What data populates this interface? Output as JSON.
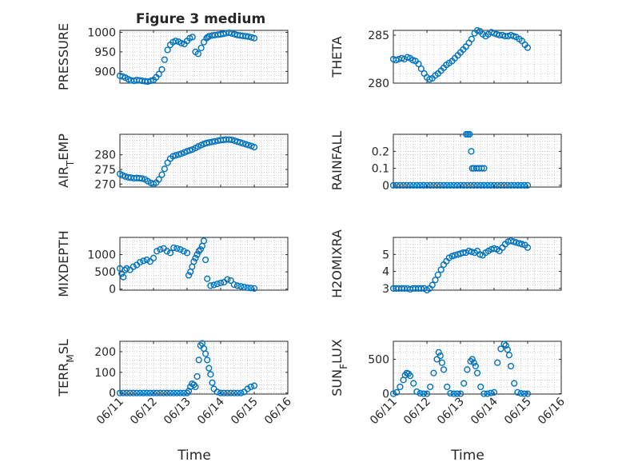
{
  "figure": {
    "title": "Figure 3 medium",
    "x_tick_labels": [
      "06/11",
      "06/12",
      "06/13",
      "06/14",
      "06/15",
      "06/16"
    ],
    "x_label": "Time"
  },
  "colors": {
    "marker": "#0072BD",
    "axes": "#262626",
    "grid": "#b0b0b0",
    "background": "#ffffff"
  },
  "chart_data": [
    {
      "type": "scatter",
      "ylabel": "PRESSURE",
      "xlim": [
        0,
        5
      ],
      "ylim": [
        870,
        1005
      ],
      "yticks": [
        900,
        950,
        1000
      ],
      "x": [
        0.0,
        0.08,
        0.16,
        0.25,
        0.33,
        0.42,
        0.5,
        0.58,
        0.66,
        0.75,
        0.83,
        0.92,
        1.0,
        1.08,
        1.16,
        1.25,
        1.33,
        1.42,
        1.5,
        1.58,
        1.66,
        1.75,
        1.83,
        1.92,
        2.0,
        2.08,
        2.16,
        2.25,
        2.33,
        2.42,
        2.5,
        2.58,
        2.62,
        2.66,
        2.75,
        2.83,
        2.92,
        3.0,
        3.08,
        3.16,
        3.25,
        3.33,
        3.42,
        3.5,
        3.58,
        3.66,
        3.75,
        3.83,
        3.92,
        4.0
      ],
      "y": [
        889,
        887,
        884,
        880,
        877,
        876,
        878,
        877,
        876,
        875,
        874,
        876,
        878,
        885,
        893,
        905,
        930,
        955,
        968,
        975,
        978,
        976,
        972,
        970,
        978,
        985,
        988,
        950,
        945,
        960,
        975,
        985,
        988,
        990,
        992,
        993,
        994,
        995,
        996,
        998,
        999,
        997,
        995,
        993,
        992,
        991,
        990,
        989,
        987,
        985
      ]
    },
    {
      "type": "scatter",
      "ylabel": "THETA",
      "xlim": [
        0,
        5
      ],
      "ylim": [
        280,
        285.5
      ],
      "yticks": [
        280,
        285
      ],
      "x": [
        0.0,
        0.08,
        0.16,
        0.25,
        0.33,
        0.42,
        0.5,
        0.58,
        0.66,
        0.75,
        0.83,
        0.92,
        1.0,
        1.08,
        1.16,
        1.25,
        1.33,
        1.42,
        1.5,
        1.58,
        1.66,
        1.75,
        1.83,
        1.92,
        2.0,
        2.08,
        2.16,
        2.25,
        2.33,
        2.42,
        2.5,
        2.58,
        2.66,
        2.75,
        2.83,
        2.92,
        3.0,
        3.08,
        3.16,
        3.25,
        3.33,
        3.42,
        3.5,
        3.58,
        3.66,
        3.75,
        3.83,
        3.92,
        4.0
      ],
      "y": [
        282.5,
        282.4,
        282.5,
        282.6,
        282.5,
        282.7,
        282.6,
        282.4,
        282.3,
        282.0,
        281.5,
        281.0,
        280.6,
        280.4,
        280.5,
        280.8,
        281.0,
        281.3,
        281.6,
        281.9,
        282.1,
        282.3,
        282.6,
        282.9,
        283.2,
        283.5,
        283.8,
        284.2,
        284.6,
        285.2,
        285.5,
        285.4,
        285.1,
        284.9,
        285.1,
        285.3,
        285.2,
        285.1,
        285.0,
        285.0,
        284.9,
        284.9,
        285.0,
        284.9,
        284.8,
        284.6,
        284.4,
        284.0,
        283.7
      ]
    },
    {
      "type": "scatter",
      "ylabel": "AIR_TEMP",
      "xlim": [
        0,
        5
      ],
      "ylim": [
        269,
        287
      ],
      "yticks": [
        270,
        275,
        280
      ],
      "x": [
        0.0,
        0.08,
        0.16,
        0.25,
        0.33,
        0.42,
        0.5,
        0.58,
        0.66,
        0.75,
        0.83,
        0.92,
        1.0,
        1.08,
        1.16,
        1.25,
        1.33,
        1.42,
        1.5,
        1.58,
        1.66,
        1.75,
        1.83,
        1.92,
        2.0,
        2.08,
        2.16,
        2.25,
        2.33,
        2.42,
        2.5,
        2.58,
        2.66,
        2.75,
        2.83,
        2.92,
        3.0,
        3.08,
        3.16,
        3.25,
        3.33,
        3.42,
        3.5,
        3.58,
        3.66,
        3.75,
        3.83,
        3.92,
        4.0
      ],
      "y": [
        273.5,
        273.0,
        272.6,
        272.3,
        272.2,
        272.0,
        272.1,
        272.0,
        271.9,
        271.6,
        271.0,
        270.4,
        270.0,
        270.5,
        271.6,
        273.2,
        275.2,
        277.3,
        278.7,
        279.5,
        279.8,
        280.1,
        280.4,
        280.8,
        281.2,
        281.5,
        281.8,
        282.3,
        282.8,
        283.3,
        283.7,
        284.0,
        284.2,
        284.4,
        284.6,
        284.8,
        285.0,
        285.1,
        285.2,
        285.2,
        285.1,
        284.8,
        284.5,
        284.2,
        283.9,
        283.6,
        283.3,
        283.0,
        282.6
      ]
    },
    {
      "type": "scatter",
      "ylabel": "RAINFALL",
      "xlim": [
        0,
        5
      ],
      "ylim": [
        -0.01,
        0.3
      ],
      "yticks": [
        0,
        0.1,
        0.2
      ],
      "x": [
        0.0,
        0.1,
        0.2,
        0.3,
        0.4,
        0.5,
        0.6,
        0.7,
        0.8,
        0.9,
        1.0,
        1.1,
        1.2,
        1.3,
        1.4,
        1.5,
        1.6,
        1.7,
        1.8,
        1.9,
        2.0,
        2.1,
        2.2,
        2.3,
        2.4,
        2.5,
        2.6,
        2.7,
        2.8,
        2.9,
        3.0,
        3.1,
        3.2,
        3.3,
        3.4,
        3.5,
        3.6,
        3.7,
        3.8,
        3.9,
        4.0,
        2.17,
        2.22,
        2.27,
        2.32,
        2.35,
        2.4,
        2.47,
        2.55,
        2.63,
        2.7
      ],
      "y": [
        0,
        0,
        0,
        0,
        0,
        0,
        0,
        0,
        0,
        0,
        0,
        0,
        0,
        0,
        0,
        0,
        0,
        0,
        0,
        0,
        0,
        0,
        0,
        0,
        0,
        0,
        0,
        0,
        0,
        0,
        0,
        0,
        0,
        0,
        0,
        0,
        0,
        0,
        0,
        0,
        0,
        0.3,
        0.3,
        0.3,
        0.2,
        0.1,
        0.1,
        0.1,
        0.1,
        0.1,
        0.1
      ]
    },
    {
      "type": "scatter",
      "ylabel": "MIXDEPTH",
      "xlim": [
        0,
        5
      ],
      "ylim": [
        -30,
        1500
      ],
      "yticks": [
        0,
        500,
        1000
      ],
      "x": [
        0.0,
        0.05,
        0.1,
        0.15,
        0.2,
        0.3,
        0.4,
        0.5,
        0.6,
        0.7,
        0.8,
        0.9,
        1.0,
        1.1,
        1.2,
        1.3,
        1.4,
        1.5,
        1.6,
        1.7,
        1.8,
        1.9,
        2.0,
        2.05,
        2.1,
        2.15,
        2.2,
        2.25,
        2.3,
        2.35,
        2.4,
        2.45,
        2.5,
        2.55,
        2.6,
        2.7,
        2.8,
        2.9,
        3.0,
        3.1,
        3.2,
        3.3,
        3.4,
        3.5,
        3.6,
        3.7,
        3.8,
        3.9,
        4.0
      ],
      "y": [
        600,
        450,
        350,
        550,
        600,
        560,
        650,
        700,
        780,
        820,
        850,
        800,
        900,
        1100,
        1150,
        1180,
        1100,
        1050,
        1200,
        1180,
        1150,
        1100,
        1050,
        400,
        500,
        650,
        800,
        900,
        1000,
        1100,
        1150,
        1250,
        1400,
        850,
        300,
        100,
        120,
        150,
        180,
        200,
        280,
        250,
        130,
        100,
        80,
        60,
        40,
        30,
        20
      ]
    },
    {
      "type": "scatter",
      "ylabel": "H2OMIXRA",
      "xlim": [
        0,
        5
      ],
      "ylim": [
        2.9,
        6.0
      ],
      "yticks": [
        3,
        4,
        5
      ],
      "x": [
        0.0,
        0.08,
        0.16,
        0.25,
        0.33,
        0.42,
        0.5,
        0.58,
        0.66,
        0.75,
        0.83,
        0.92,
        1.0,
        1.08,
        1.16,
        1.25,
        1.33,
        1.42,
        1.5,
        1.58,
        1.66,
        1.75,
        1.83,
        1.92,
        2.0,
        2.08,
        2.16,
        2.25,
        2.33,
        2.42,
        2.5,
        2.58,
        2.66,
        2.75,
        2.83,
        2.92,
        3.0,
        3.08,
        3.16,
        3.25,
        3.33,
        3.42,
        3.5,
        3.58,
        3.66,
        3.75,
        3.83,
        3.92,
        4.0
      ],
      "y": [
        3.0,
        3.0,
        3.0,
        3.0,
        3.0,
        3.0,
        2.95,
        3.0,
        3.0,
        3.0,
        3.0,
        3.0,
        2.9,
        3.0,
        3.2,
        3.5,
        3.8,
        4.1,
        4.4,
        4.6,
        4.8,
        4.9,
        4.95,
        5.0,
        5.05,
        5.1,
        5.1,
        5.2,
        5.15,
        5.1,
        5.2,
        5.0,
        4.95,
        5.1,
        5.2,
        5.3,
        5.35,
        5.3,
        5.2,
        5.4,
        5.6,
        5.75,
        5.8,
        5.75,
        5.7,
        5.65,
        5.6,
        5.55,
        5.4
      ]
    },
    {
      "type": "scatter",
      "ylabel": "TERR_MSL",
      "xlim": [
        0,
        5
      ],
      "ylim": [
        -5,
        250
      ],
      "yticks": [
        0,
        100,
        200
      ],
      "x": [
        0.0,
        0.1,
        0.2,
        0.3,
        0.4,
        0.5,
        0.6,
        0.7,
        0.8,
        0.9,
        1.0,
        1.1,
        1.2,
        1.3,
        1.4,
        1.5,
        1.6,
        1.7,
        1.8,
        1.9,
        2.0,
        2.05,
        2.1,
        2.15,
        2.2,
        2.25,
        2.3,
        2.35,
        2.4,
        2.45,
        2.5,
        2.55,
        2.6,
        2.65,
        2.7,
        2.75,
        2.8,
        2.9,
        3.0,
        3.1,
        3.2,
        3.3,
        3.4,
        3.5,
        3.6,
        3.7,
        3.8,
        3.9,
        4.0
      ],
      "y": [
        0,
        0,
        0,
        0,
        0,
        0,
        0,
        0,
        0,
        0,
        0,
        0,
        0,
        0,
        0,
        0,
        0,
        0,
        0,
        0,
        0,
        10,
        30,
        45,
        40,
        30,
        80,
        160,
        230,
        240,
        215,
        190,
        160,
        120,
        90,
        50,
        20,
        5,
        0,
        0,
        0,
        0,
        0,
        0,
        0,
        5,
        20,
        30,
        35
      ]
    },
    {
      "type": "scatter",
      "ylabel": "SUN_FLUX",
      "xlim": [
        0,
        5
      ],
      "ylim": [
        -5,
        760
      ],
      "yticks": [
        0,
        500
      ],
      "x": [
        0.0,
        0.1,
        0.2,
        0.3,
        0.35,
        0.4,
        0.45,
        0.5,
        0.6,
        0.7,
        0.8,
        0.9,
        1.0,
        1.1,
        1.2,
        1.3,
        1.35,
        1.4,
        1.45,
        1.5,
        1.6,
        1.7,
        1.8,
        1.9,
        2.0,
        2.1,
        2.2,
        2.3,
        2.35,
        2.4,
        2.45,
        2.5,
        2.6,
        2.7,
        2.8,
        2.9,
        3.0,
        3.1,
        3.2,
        3.3,
        3.35,
        3.4,
        3.45,
        3.5,
        3.6,
        3.7,
        3.8,
        3.9,
        4.0
      ],
      "y": [
        0,
        20,
        100,
        200,
        270,
        300,
        290,
        260,
        150,
        30,
        5,
        0,
        0,
        100,
        300,
        500,
        600,
        550,
        450,
        350,
        100,
        5,
        0,
        0,
        0,
        150,
        350,
        470,
        500,
        450,
        400,
        300,
        100,
        0,
        0,
        10,
        20,
        450,
        650,
        720,
        700,
        640,
        560,
        400,
        150,
        20,
        5,
        0,
        0
      ]
    }
  ]
}
